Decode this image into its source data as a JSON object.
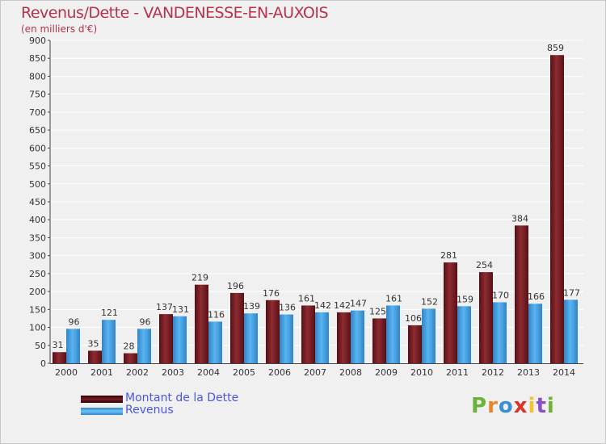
{
  "title": "Revenus/Dette - VANDENESSE-EN-AUXOIS",
  "subtitle": "(en milliers d'€)",
  "brand": "Proxiti",
  "colors": {
    "dette": "#7a1c22",
    "revenus": "#4aa3e3",
    "title": "#b5334a",
    "legend_text": "#4a56e0",
    "grid": "#ffffff",
    "plot_bg": "#f0f0f0"
  },
  "legend": {
    "dette_label": "Montant de la Dette",
    "revenus_label": "Revenus"
  },
  "chart_data": {
    "type": "bar",
    "title": "Revenus/Dette - VANDENESSE-EN-AUXOIS",
    "ylabel": "(en milliers d'€)",
    "xlabel": "",
    "ylim": [
      0,
      900
    ],
    "yticks": [
      0,
      50,
      100,
      150,
      200,
      250,
      300,
      350,
      400,
      450,
      500,
      550,
      600,
      650,
      700,
      750,
      800,
      850,
      900
    ],
    "grid": true,
    "categories": [
      "2000",
      "2001",
      "2002",
      "2003",
      "2004",
      "2005",
      "2006",
      "2007",
      "2008",
      "2009",
      "2010",
      "2011",
      "2012",
      "2013",
      "2014"
    ],
    "series": [
      {
        "name": "Montant de la Dette",
        "values": [
          31,
          35,
          28,
          137,
          219,
          196,
          176,
          161,
          142,
          125,
          106,
          281,
          254,
          384,
          859
        ]
      },
      {
        "name": "Revenus",
        "values": [
          96,
          121,
          96,
          131,
          116,
          139,
          136,
          142,
          147,
          161,
          152,
          159,
          170,
          166,
          177
        ]
      }
    ],
    "legend_position": "bottom-left"
  }
}
